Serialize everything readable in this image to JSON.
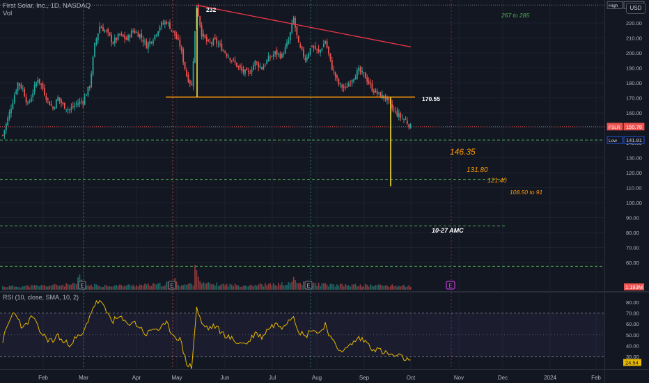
{
  "header": {
    "symbol_line": "First Solar, Inc., 1D, NASDAQ",
    "vol_label": "Vol"
  },
  "currency_button": "USD",
  "colors": {
    "background": "#131722",
    "grid": "#1e222d",
    "up": "#26a69a",
    "down": "#ef5350",
    "trendline": "#f23645",
    "support": "#ff9800",
    "target_line": "#ffeb3b",
    "green_dashed": "#4caf50",
    "rsi_line": "#e6b800",
    "rsi_band": "#7e57c2"
  },
  "chart_data": [
    {
      "type": "candlestick",
      "title": "First Solar, Inc., 1D, NASDAQ",
      "x_tick_labels": [
        "Feb",
        "Mar",
        "Apr",
        "May",
        "Jun",
        "Jul",
        "Aug",
        "Sep",
        "Oct",
        "Nov",
        "Dec",
        "2024",
        "Feb"
      ],
      "y_ticks": [
        60,
        70,
        80,
        90,
        100,
        110,
        120,
        130,
        140,
        150,
        160,
        170,
        180,
        190,
        200,
        210,
        220
      ],
      "ylim": [
        56,
        233
      ],
      "price_tags": [
        {
          "label": "High",
          "value": "232.00",
          "price": 232.0
        },
        {
          "label": "FSLR",
          "value": "150.78",
          "price": 150.78
        },
        {
          "label": "Low",
          "value": "141.81",
          "price": 141.81
        }
      ],
      "volume_tag": "1.183M",
      "annotations": [
        {
          "text": "232",
          "color": "#ffffff"
        },
        {
          "text": "267 to 285",
          "color": "#4caf50"
        },
        {
          "text": "170.55",
          "color": "#ffffff"
        },
        {
          "text": "146.35",
          "color": "#ff9800"
        },
        {
          "text": "131.80",
          "color": "#ff9800"
        },
        {
          "text": "121.40",
          "color": "#ff9800"
        },
        {
          "text": "108.50 to 91",
          "color": "#ff9800"
        },
        {
          "text": "10-27 AMC",
          "color": "#ffffff"
        }
      ],
      "horizontal_levels": [
        {
          "price": 170.55,
          "style": "solid",
          "color": "#ff9800"
        },
        {
          "price": 141.81,
          "style": "dashed",
          "color": "#4caf50"
        },
        {
          "price": 115.5,
          "style": "dashed",
          "color": "#4caf50"
        },
        {
          "price": 84.5,
          "style": "dashed",
          "color": "#4caf50"
        },
        {
          "price": 232.0,
          "style": "dotted",
          "color": "#787b86"
        }
      ],
      "trendline": {
        "from": {
          "date": "2023-05-15",
          "price": 232
        },
        "to": {
          "date": "2023-10-02",
          "price": 204
        }
      },
      "measured_moves": [
        {
          "date": "2023-05-15",
          "from": 232,
          "to": 170.55
        },
        {
          "date": "2023-09-19",
          "from": 170.55,
          "to": 111
        }
      ],
      "earnings_markers": [
        "E",
        "E",
        "E"
      ],
      "upcoming_marker": "E",
      "price_path": [
        [
          0,
          145
        ],
        [
          3,
          156
        ],
        [
          6,
          168
        ],
        [
          9,
          180
        ],
        [
          12,
          176
        ],
        [
          15,
          165
        ],
        [
          18,
          174
        ],
        [
          21,
          183
        ],
        [
          24,
          176
        ],
        [
          27,
          168
        ],
        [
          30,
          163
        ],
        [
          33,
          170
        ],
        [
          36,
          165
        ],
        [
          40,
          162
        ],
        [
          44,
          166
        ],
        [
          48,
          168
        ],
        [
          52,
          178
        ],
        [
          55,
          205
        ],
        [
          58,
          218
        ],
        [
          62,
          214
        ],
        [
          66,
          207
        ],
        [
          70,
          212
        ],
        [
          74,
          209
        ],
        [
          78,
          215
        ],
        [
          82,
          212
        ],
        [
          86,
          205
        ],
        [
          90,
          210
        ],
        [
          94,
          218
        ],
        [
          98,
          221
        ],
        [
          102,
          214
        ],
        [
          106,
          205
        ],
        [
          110,
          185
        ],
        [
          113,
          178
        ],
        [
          116,
          232
        ],
        [
          119,
          213
        ],
        [
          123,
          206
        ],
        [
          127,
          208
        ],
        [
          131,
          203
        ],
        [
          135,
          198
        ],
        [
          139,
          193
        ],
        [
          143,
          188
        ],
        [
          147,
          186
        ],
        [
          151,
          194
        ],
        [
          155,
          190
        ],
        [
          159,
          196
        ],
        [
          163,
          200
        ],
        [
          167,
          198
        ],
        [
          171,
          208
        ],
        [
          174,
          223
        ],
        [
          177,
          205
        ],
        [
          181,
          196
        ],
        [
          185,
          205
        ],
        [
          189,
          200
        ],
        [
          193,
          208
        ],
        [
          197,
          190
        ],
        [
          201,
          179
        ],
        [
          205,
          176
        ],
        [
          209,
          183
        ],
        [
          213,
          188
        ],
        [
          217,
          184
        ],
        [
          221,
          176
        ],
        [
          225,
          172
        ],
        [
          229,
          170
        ],
        [
          233,
          163
        ],
        [
          237,
          158
        ],
        [
          241,
          155
        ],
        [
          244,
          150.78
        ]
      ],
      "volume_profile": [
        [
          0,
          0.22
        ],
        [
          18,
          0.25
        ],
        [
          44,
          0.35
        ],
        [
          46,
          1.0
        ],
        [
          48,
          0.45
        ],
        [
          50,
          0.3
        ],
        [
          70,
          0.28
        ],
        [
          96,
          0.35
        ],
        [
          104,
          0.65
        ],
        [
          106,
          0.3
        ],
        [
          114,
          0.4
        ],
        [
          116,
          2.1
        ],
        [
          118,
          0.6
        ],
        [
          120,
          0.4
        ],
        [
          140,
          0.3
        ],
        [
          160,
          0.35
        ],
        [
          172,
          0.4
        ],
        [
          174,
          0.8
        ],
        [
          176,
          0.45
        ],
        [
          200,
          0.3
        ],
        [
          220,
          0.3
        ],
        [
          244,
          0.25
        ]
      ]
    },
    {
      "type": "line",
      "title": "RSI (10, close, SMA, 10, 2)",
      "y_ticks": [
        30,
        40,
        50,
        60,
        70,
        80
      ],
      "ylim": [
        15,
        85
      ],
      "levels": [
        70,
        30
      ],
      "last_value": "24.54",
      "rsi_path": [
        [
          0,
          45
        ],
        [
          3,
          58
        ],
        [
          6,
          70
        ],
        [
          9,
          67
        ],
        [
          12,
          55
        ],
        [
          15,
          62
        ],
        [
          18,
          67
        ],
        [
          21,
          56
        ],
        [
          24,
          50
        ],
        [
          27,
          46
        ],
        [
          30,
          44
        ],
        [
          33,
          50
        ],
        [
          36,
          43
        ],
        [
          40,
          42
        ],
        [
          44,
          47
        ],
        [
          48,
          50
        ],
        [
          52,
          68
        ],
        [
          55,
          78
        ],
        [
          58,
          81
        ],
        [
          62,
          71
        ],
        [
          66,
          63
        ],
        [
          70,
          66
        ],
        [
          74,
          60
        ],
        [
          78,
          62
        ],
        [
          82,
          57
        ],
        [
          86,
          50
        ],
        [
          90,
          56
        ],
        [
          94,
          55
        ],
        [
          98,
          60
        ],
        [
          102,
          50
        ],
        [
          106,
          46
        ],
        [
          110,
          24
        ],
        [
          113,
          20
        ],
        [
          116,
          75
        ],
        [
          119,
          60
        ],
        [
          123,
          56
        ],
        [
          127,
          58
        ],
        [
          131,
          52
        ],
        [
          135,
          48
        ],
        [
          139,
          44
        ],
        [
          143,
          42
        ],
        [
          147,
          43
        ],
        [
          151,
          52
        ],
        [
          155,
          48
        ],
        [
          159,
          56
        ],
        [
          163,
          60
        ],
        [
          167,
          58
        ],
        [
          171,
          64
        ],
        [
          174,
          68
        ],
        [
          177,
          54
        ],
        [
          181,
          48
        ],
        [
          185,
          56
        ],
        [
          189,
          51
        ],
        [
          193,
          60
        ],
        [
          197,
          44
        ],
        [
          201,
          37
        ],
        [
          205,
          36
        ],
        [
          209,
          42
        ],
        [
          213,
          47
        ],
        [
          217,
          44
        ],
        [
          221,
          38
        ],
        [
          225,
          36
        ],
        [
          229,
          33
        ],
        [
          233,
          31
        ],
        [
          237,
          30
        ],
        [
          241,
          28
        ],
        [
          244,
          24.54
        ]
      ]
    }
  ]
}
